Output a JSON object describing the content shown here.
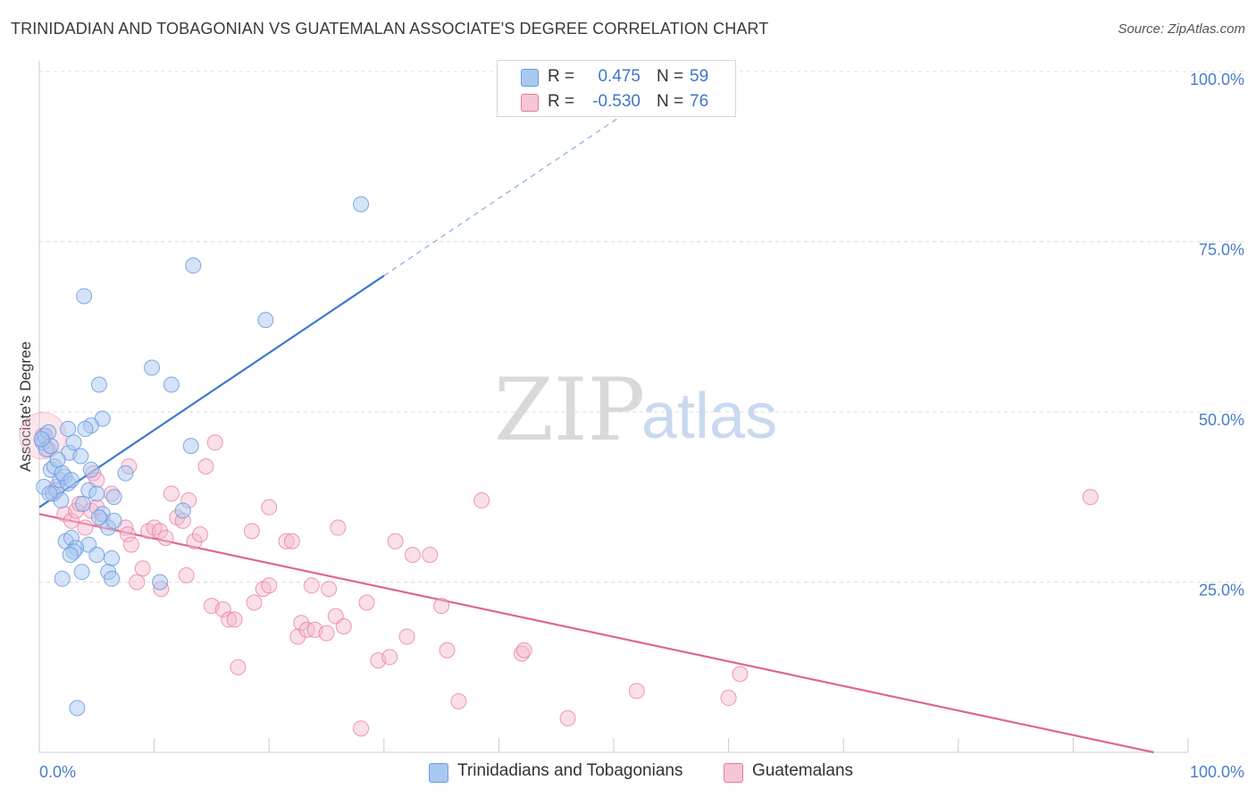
{
  "header": {
    "title": "TRINIDADIAN AND TOBAGONIAN VS GUATEMALAN ASSOCIATE'S DEGREE CORRELATION CHART",
    "source": "Source: ZipAtlas.com"
  },
  "watermark": {
    "zip": "ZIP",
    "atlas": "atlas"
  },
  "legend": {
    "rows": [
      {
        "r_label": "R =",
        "r_value": "0.475",
        "n_label": "N =",
        "n_value": "59",
        "color": "#a9c8f0"
      },
      {
        "r_label": "R =",
        "r_value": "-0.530",
        "n_label": "N =",
        "n_value": "76",
        "color": "#f5b8cb"
      }
    ]
  },
  "bottom_legend": [
    {
      "label": "Trinidadians and Tobagonians",
      "color": "#a9c8f0"
    },
    {
      "label": "Guatemalans",
      "color": "#f5b8cb"
    }
  ],
  "chart_data": {
    "type": "scatter",
    "title": "TRINIDADIAN AND TOBAGONIAN VS GUATEMALAN ASSOCIATE'S DEGREE CORRELATION CHART",
    "ylabel": "Associate's Degree",
    "xlabel": "",
    "xlim": [
      0,
      100
    ],
    "ylim": [
      0,
      100
    ],
    "x_ticks": [
      "0.0%",
      "100.0%"
    ],
    "y_ticks": [
      {
        "value": 25,
        "label": "25.0%"
      },
      {
        "value": 50,
        "label": "50.0%"
      },
      {
        "value": 75,
        "label": "75.0%"
      },
      {
        "value": 100,
        "label": "100.0%"
      }
    ],
    "grid": true,
    "series": [
      {
        "name": "Trinidadians and Tobagonians",
        "color": "#6a9be0",
        "fill": "#a9c8f0",
        "trend": {
          "x0": 0,
          "y0": 36,
          "x1": 30,
          "y1": 70,
          "dash_to_x": 52,
          "dash_to_y": 95
        },
        "points": [
          [
            0.3,
            45.5
          ],
          [
            0.5,
            46.5
          ],
          [
            0.6,
            44.5
          ],
          [
            0.8,
            47
          ],
          [
            1.0,
            45
          ],
          [
            0.4,
            39
          ],
          [
            1.2,
            38
          ],
          [
            1.5,
            38.5
          ],
          [
            1.8,
            40
          ],
          [
            2.2,
            40.5
          ],
          [
            2.5,
            39.5
          ],
          [
            1.0,
            41.5
          ],
          [
            1.3,
            42
          ],
          [
            2.0,
            41
          ],
          [
            2.8,
            40
          ],
          [
            2.6,
            44
          ],
          [
            2.5,
            47.5
          ],
          [
            3.0,
            45.5
          ],
          [
            3.6,
            43.5
          ],
          [
            4.5,
            41.5
          ],
          [
            4.3,
            38.5
          ],
          [
            3.8,
            36.5
          ],
          [
            5.0,
            38
          ],
          [
            6.5,
            37.5
          ],
          [
            7.5,
            41
          ],
          [
            5.5,
            35
          ],
          [
            6.0,
            33
          ],
          [
            6.5,
            34
          ],
          [
            5.2,
            34.5
          ],
          [
            4.3,
            30.5
          ],
          [
            2.3,
            31
          ],
          [
            2.8,
            31.5
          ],
          [
            3.2,
            30
          ],
          [
            3.0,
            29.5
          ],
          [
            2.7,
            29
          ],
          [
            5.0,
            29
          ],
          [
            6.3,
            28.5
          ],
          [
            6.0,
            26.5
          ],
          [
            6.3,
            25.5
          ],
          [
            3.7,
            26.5
          ],
          [
            2.0,
            25.5
          ],
          [
            10.5,
            25
          ],
          [
            12.5,
            35.5
          ],
          [
            3.3,
            6.5
          ],
          [
            3.9,
            67
          ],
          [
            5.2,
            54
          ],
          [
            5.5,
            49
          ],
          [
            4.5,
            48
          ],
          [
            4.0,
            47.5
          ],
          [
            9.8,
            56.5
          ],
          [
            11.5,
            54
          ],
          [
            13.4,
            71.5
          ],
          [
            13.2,
            45
          ],
          [
            19.7,
            63.5
          ],
          [
            28,
            80.5
          ],
          [
            0.2,
            46
          ],
          [
            1.6,
            43
          ],
          [
            1.9,
            37
          ],
          [
            0.9,
            38
          ]
        ]
      },
      {
        "name": "Guatemalans",
        "color": "#e8779c",
        "fill": "#f5b8cb",
        "trend": {
          "x0": 0,
          "y0": 35,
          "x1": 97,
          "y1": 0
        },
        "points": [
          [
            0.3,
            46.5
          ],
          [
            0.8,
            44.5
          ],
          [
            1.2,
            38
          ],
          [
            1.5,
            39
          ],
          [
            2.2,
            35
          ],
          [
            2.8,
            34
          ],
          [
            3.2,
            35.5
          ],
          [
            3.5,
            36.5
          ],
          [
            4.0,
            33
          ],
          [
            4.5,
            35.5
          ],
          [
            5.0,
            36
          ],
          [
            5.5,
            34
          ],
          [
            4.7,
            41
          ],
          [
            5.0,
            40
          ],
          [
            6.3,
            38
          ],
          [
            7.5,
            33
          ],
          [
            7.7,
            32
          ],
          [
            8.0,
            30.5
          ],
          [
            7.8,
            42
          ],
          [
            8.5,
            25
          ],
          [
            9.0,
            27
          ],
          [
            9.5,
            32.5
          ],
          [
            10.0,
            33
          ],
          [
            10.5,
            32.5
          ],
          [
            10.6,
            24
          ],
          [
            11.0,
            31.5
          ],
          [
            11.5,
            38
          ],
          [
            12.0,
            34.5
          ],
          [
            12.5,
            34
          ],
          [
            13.0,
            37
          ],
          [
            13.5,
            31
          ],
          [
            12.8,
            26
          ],
          [
            14.0,
            32
          ],
          [
            14.5,
            42
          ],
          [
            15.3,
            45.5
          ],
          [
            15.0,
            21.5
          ],
          [
            16.0,
            21
          ],
          [
            16.5,
            19.5
          ],
          [
            17.0,
            19.5
          ],
          [
            17.3,
            12.5
          ],
          [
            18.5,
            32.5
          ],
          [
            18.7,
            22
          ],
          [
            19.5,
            24
          ],
          [
            20.0,
            24.5
          ],
          [
            20.0,
            36
          ],
          [
            21.5,
            31
          ],
          [
            22.0,
            31
          ],
          [
            22.5,
            17
          ],
          [
            22.8,
            19
          ],
          [
            23.3,
            18
          ],
          [
            23.7,
            24.5
          ],
          [
            24.0,
            18
          ],
          [
            25.0,
            17.5
          ],
          [
            25.2,
            24
          ],
          [
            25.8,
            20
          ],
          [
            26.0,
            33
          ],
          [
            26.5,
            18.5
          ],
          [
            28.0,
            3.5
          ],
          [
            28.5,
            22
          ],
          [
            29.5,
            13.5
          ],
          [
            30.5,
            14
          ],
          [
            31.0,
            31
          ],
          [
            32.0,
            17
          ],
          [
            32.5,
            29
          ],
          [
            34.0,
            29
          ],
          [
            35.0,
            21.5
          ],
          [
            35.5,
            15
          ],
          [
            36.5,
            7.5
          ],
          [
            38.5,
            37
          ],
          [
            42.0,
            14.5
          ],
          [
            42.2,
            15
          ],
          [
            46.0,
            5
          ],
          [
            52.0,
            9
          ],
          [
            60.0,
            8
          ],
          [
            61.0,
            11.5
          ],
          [
            91.5,
            37.5
          ]
        ],
        "extra_large_points": [
          [
            0.3,
            46.5
          ]
        ]
      }
    ]
  }
}
